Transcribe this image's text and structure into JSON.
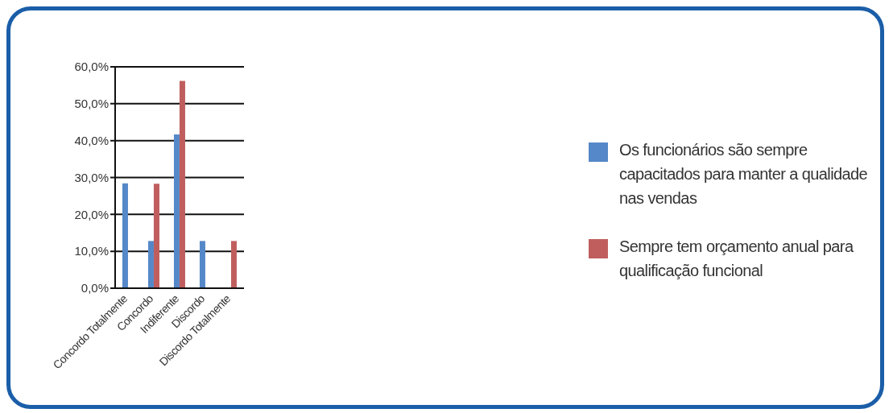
{
  "chart_data": {
    "type": "bar",
    "categories": [
      "Concordo Totalmente",
      "Concordo",
      "Indiferente",
      "Discordo",
      "Discordo Totalmente"
    ],
    "series": [
      {
        "name": "Os funcionários são sempre capacitados para manter a qualidade nas vendas",
        "color": "#5588c8",
        "values": [
          28.4,
          12.8,
          41.7,
          12.8,
          0
        ]
      },
      {
        "name": "Sempre tem orçamento anual para qualificação funcional",
        "color": "#c05e5e",
        "values": [
          0,
          28.3,
          56.2,
          0,
          12.8
        ]
      }
    ],
    "ylim": [
      0,
      60
    ],
    "yticks": [
      {
        "value": 0,
        "label": "0,0%"
      },
      {
        "value": 10,
        "label": "10,0%"
      },
      {
        "value": 20,
        "label": "20,0%"
      },
      {
        "value": 30,
        "label": "30,0%"
      },
      {
        "value": 40,
        "label": "40,0%"
      },
      {
        "value": 50,
        "label": "50,0%"
      },
      {
        "value": 60,
        "label": "60,0%"
      }
    ],
    "grid": "y",
    "legend": "right"
  }
}
